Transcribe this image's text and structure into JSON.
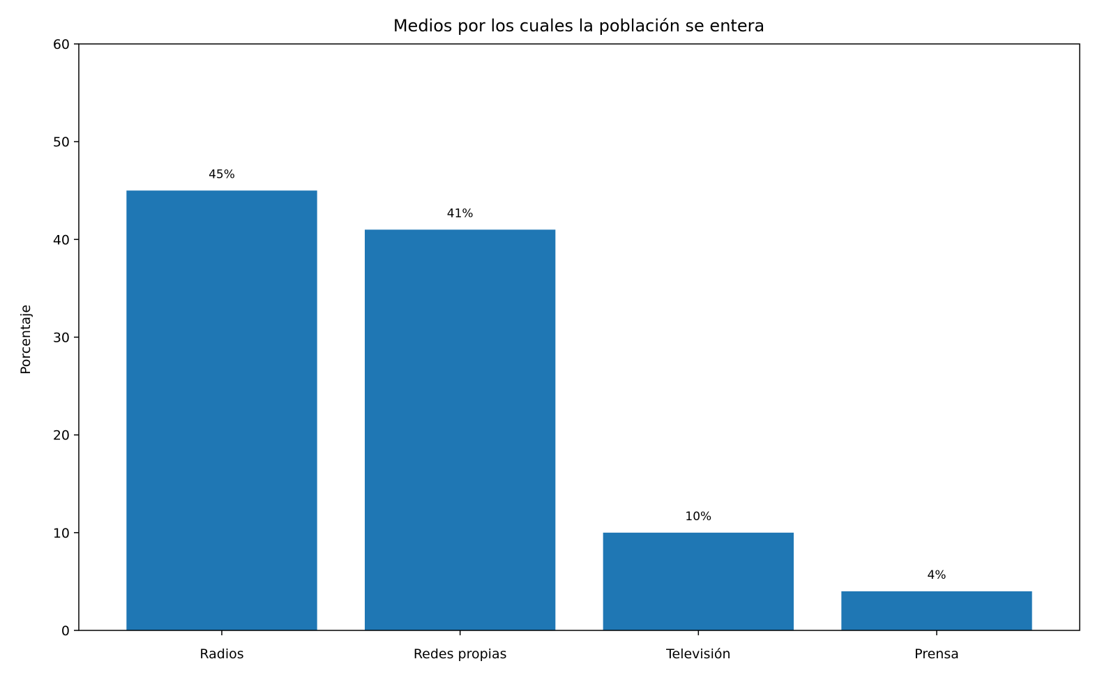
{
  "chart_data": {
    "type": "bar",
    "title": "Medios por los cuales la población se entera",
    "xlabel": "",
    "ylabel": "Porcentaje",
    "categories": [
      "Radios",
      "Redes propias",
      "Televisión",
      "Prensa"
    ],
    "values": [
      45,
      41,
      10,
      4
    ],
    "data_labels": [
      "45%",
      "41%",
      "10%",
      "4%"
    ],
    "ylim": [
      0,
      60
    ],
    "yticks": [
      0,
      10,
      20,
      30,
      40,
      50,
      60
    ],
    "grid": false,
    "bar_color": "#1f77b4"
  }
}
